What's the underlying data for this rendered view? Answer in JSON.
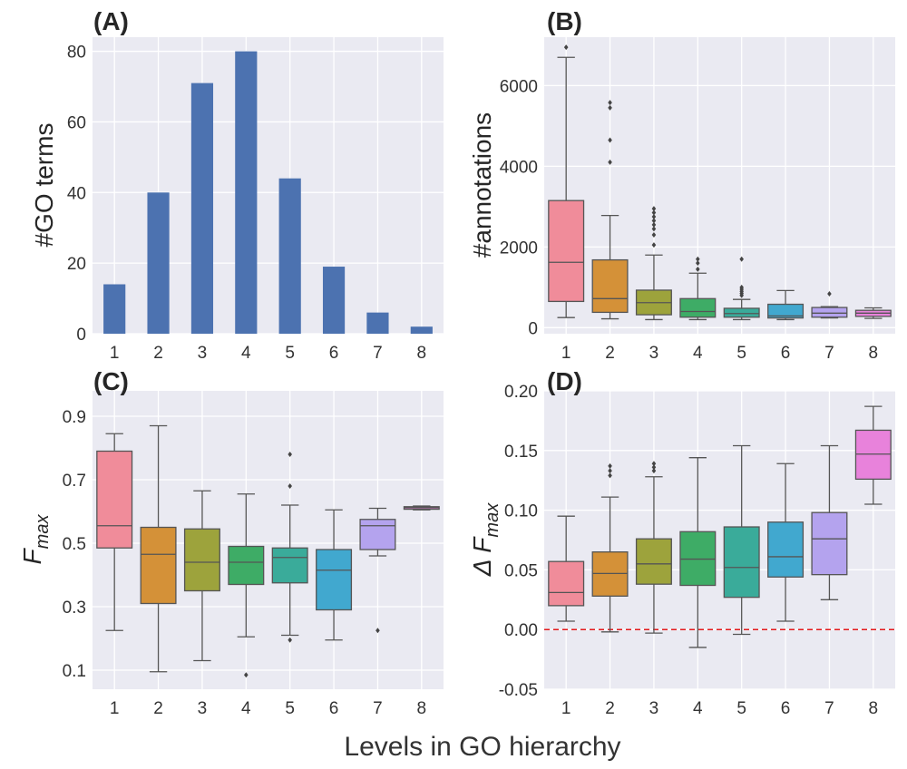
{
  "figure": {
    "xlabel": "Levels in GO hierarchy"
  },
  "style": {
    "panel_bg": "#EAEAF2",
    "grid_color": "#FFFFFF",
    "bar_color": "#4C72B0",
    "whisker_color": "#555555",
    "zero_line_color": "#E41A1C",
    "palette": [
      "#F08C9A",
      "#D49138",
      "#9DA33C",
      "#3EAC66",
      "#3AAB9A",
      "#41A8CF",
      "#B4A3EE",
      "#E882DB"
    ]
  },
  "chart_data": [
    {
      "panel": "(A)",
      "type": "bar",
      "ylabel": "#GO terms",
      "categories": [
        "1",
        "2",
        "3",
        "4",
        "5",
        "6",
        "7",
        "8"
      ],
      "values": [
        14,
        40,
        71,
        80,
        44,
        19,
        6,
        2
      ],
      "ylim": [
        0,
        84
      ],
      "yticks": [
        "0",
        "20",
        "40",
        "60",
        "80"
      ],
      "grid": true
    },
    {
      "panel": "(B)",
      "type": "box",
      "ylabel": "#annotations",
      "categories": [
        "1",
        "2",
        "3",
        "4",
        "5",
        "6",
        "7",
        "8"
      ],
      "ylim": [
        -150,
        7200
      ],
      "yticks": [
        "0",
        "2000",
        "4000",
        "6000"
      ],
      "grid": true,
      "boxes": [
        {
          "whislo": 250,
          "q1": 650,
          "med": 1620,
          "q3": 3150,
          "whishi": 6700,
          "fliers": [
            6950
          ]
        },
        {
          "whislo": 220,
          "q1": 380,
          "med": 720,
          "q3": 1680,
          "whishi": 2780,
          "fliers": [
            4100,
            4650,
            5450,
            5580
          ]
        },
        {
          "whislo": 200,
          "q1": 320,
          "med": 620,
          "q3": 930,
          "whishi": 1800,
          "fliers": [
            2050,
            2300,
            2450,
            2550,
            2650,
            2750,
            2850,
            2950
          ]
        },
        {
          "whislo": 200,
          "q1": 260,
          "med": 400,
          "q3": 720,
          "whishi": 1350,
          "fliers": [
            1450,
            1600,
            1700
          ]
        },
        {
          "whislo": 200,
          "q1": 260,
          "med": 350,
          "q3": 480,
          "whishi": 700,
          "fliers": [
            800,
            850,
            900,
            950,
            1000,
            1700
          ]
        },
        {
          "whislo": 200,
          "q1": 240,
          "med": 290,
          "q3": 580,
          "whishi": 920,
          "fliers": []
        },
        {
          "whislo": 240,
          "q1": 260,
          "med": 360,
          "q3": 500,
          "whishi": 520,
          "fliers": [
            840
          ]
        },
        {
          "whislo": 230,
          "q1": 280,
          "med": 360,
          "q3": 430,
          "whishi": 490,
          "fliers": []
        }
      ]
    },
    {
      "panel": "(C)",
      "type": "box",
      "ylabel_main": "F",
      "ylabel_sub": "max",
      "categories": [
        "1",
        "2",
        "3",
        "4",
        "5",
        "6",
        "7",
        "8"
      ],
      "ylim": [
        0.04,
        0.98
      ],
      "yticks": [
        "0.1",
        "0.3",
        "0.5",
        "0.7",
        "0.9"
      ],
      "grid": true,
      "boxes": [
        {
          "whislo": 0.225,
          "q1": 0.485,
          "med": 0.555,
          "q3": 0.79,
          "whishi": 0.845,
          "fliers": []
        },
        {
          "whislo": 0.095,
          "q1": 0.31,
          "med": 0.465,
          "q3": 0.55,
          "whishi": 0.87,
          "fliers": []
        },
        {
          "whislo": 0.13,
          "q1": 0.35,
          "med": 0.44,
          "q3": 0.545,
          "whishi": 0.665,
          "fliers": []
        },
        {
          "whislo": 0.205,
          "q1": 0.37,
          "med": 0.44,
          "q3": 0.49,
          "whishi": 0.655,
          "fliers": [
            0.085
          ]
        },
        {
          "whislo": 0.21,
          "q1": 0.375,
          "med": 0.455,
          "q3": 0.485,
          "whishi": 0.62,
          "fliers": [
            0.195,
            0.68,
            0.78
          ]
        },
        {
          "whislo": 0.195,
          "q1": 0.29,
          "med": 0.415,
          "q3": 0.48,
          "whishi": 0.605,
          "fliers": []
        },
        {
          "whislo": 0.46,
          "q1": 0.48,
          "med": 0.555,
          "q3": 0.575,
          "whishi": 0.61,
          "fliers": [
            0.225
          ]
        },
        {
          "whislo": 0.605,
          "q1": 0.607,
          "med": 0.612,
          "q3": 0.615,
          "whishi": 0.617,
          "fliers": []
        }
      ]
    },
    {
      "panel": "(D)",
      "type": "box",
      "ylabel_main": "Δ F",
      "ylabel_sub": "max",
      "categories": [
        "1",
        "2",
        "3",
        "4",
        "5",
        "6",
        "7",
        "8"
      ],
      "ylim": [
        -0.05,
        0.2
      ],
      "yticks": [
        "-0.05",
        "0.00",
        "0.05",
        "0.10",
        "0.15",
        "0.20"
      ],
      "grid": true,
      "reference_line": 0,
      "boxes": [
        {
          "whislo": 0.007,
          "q1": 0.02,
          "med": 0.031,
          "q3": 0.057,
          "whishi": 0.095,
          "fliers": []
        },
        {
          "whislo": -0.002,
          "q1": 0.028,
          "med": 0.047,
          "q3": 0.065,
          "whishi": 0.111,
          "fliers": [
            0.129,
            0.133,
            0.137
          ]
        },
        {
          "whislo": -0.003,
          "q1": 0.038,
          "med": 0.055,
          "q3": 0.076,
          "whishi": 0.128,
          "fliers": [
            0.133,
            0.136,
            0.139
          ]
        },
        {
          "whislo": -0.015,
          "q1": 0.037,
          "med": 0.059,
          "q3": 0.082,
          "whishi": 0.144,
          "fliers": []
        },
        {
          "whislo": -0.004,
          "q1": 0.027,
          "med": 0.052,
          "q3": 0.086,
          "whishi": 0.154,
          "fliers": []
        },
        {
          "whislo": 0.007,
          "q1": 0.044,
          "med": 0.061,
          "q3": 0.09,
          "whishi": 0.139,
          "fliers": []
        },
        {
          "whislo": 0.025,
          "q1": 0.046,
          "med": 0.076,
          "q3": 0.098,
          "whishi": 0.154,
          "fliers": []
        },
        {
          "whislo": 0.105,
          "q1": 0.126,
          "med": 0.147,
          "q3": 0.167,
          "whishi": 0.187,
          "fliers": []
        }
      ]
    }
  ]
}
